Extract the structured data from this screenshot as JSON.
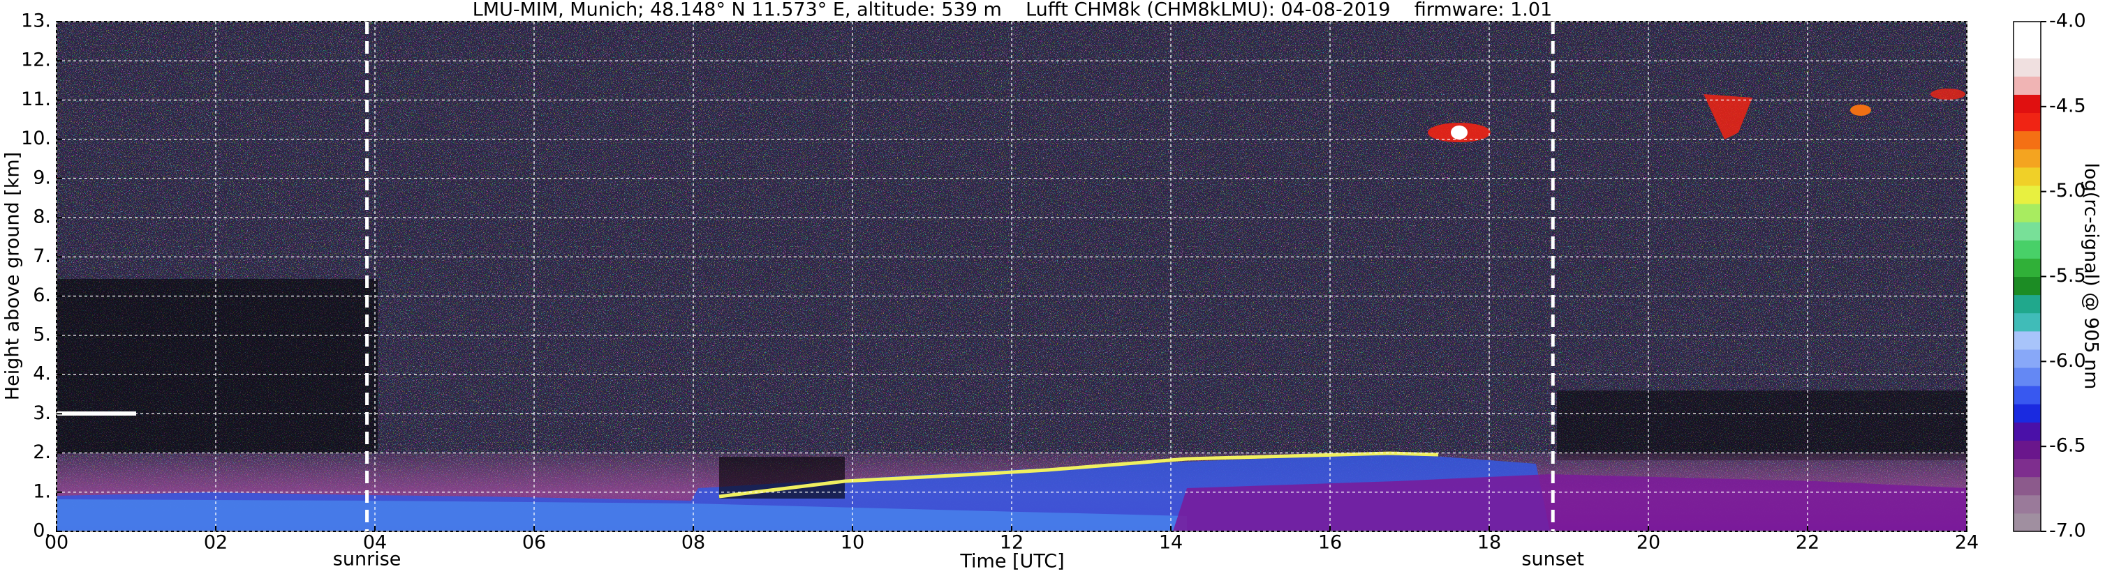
{
  "chart_data": {
    "type": "heatmap",
    "title": "LMU-MIM, Munich; 48.148° N 11.573° E, altitude: 539 m    Lufft CHM8k (CHM8kLMU): 04-08-2019    firmware: 1.01",
    "x_label": "Time [UTC]",
    "y_label": "Height above ground [km]",
    "colorbar_label": "log(rc-signal) @ 905 nm",
    "xlim": [
      0,
      24
    ],
    "xticks": [
      {
        "value": 0,
        "label": "00"
      },
      {
        "value": 2,
        "label": "02"
      },
      {
        "value": 4,
        "label": "04"
      },
      {
        "value": 6,
        "label": "06"
      },
      {
        "value": 8,
        "label": "08"
      },
      10,
      12,
      14,
      16,
      18,
      20,
      22,
      24
    ],
    "ylim": [
      0,
      13
    ],
    "yticks": [
      {
        "value": 0,
        "label": "0."
      },
      {
        "value": 1,
        "label": "1."
      },
      {
        "value": 2,
        "label": "2."
      },
      {
        "value": 3,
        "label": "3."
      },
      {
        "value": 4,
        "label": "4."
      },
      {
        "value": 5,
        "label": "5."
      },
      {
        "value": 6,
        "label": "6."
      },
      {
        "value": 7,
        "label": "7."
      },
      {
        "value": 8,
        "label": "8."
      },
      {
        "value": 9,
        "label": "9."
      },
      {
        "value": 10,
        "label": "10."
      },
      {
        "value": 11,
        "label": "11."
      },
      {
        "value": 12,
        "label": "12."
      },
      {
        "value": 13,
        "label": "13."
      }
    ],
    "grid": true,
    "clim": [
      -7,
      -4
    ],
    "cticks": [
      {
        "value": -4,
        "label": "-4.0"
      },
      -4.5,
      {
        "value": -5,
        "label": "-5.0"
      },
      -5.5,
      {
        "value": -6,
        "label": "-6.0"
      },
      -6.5,
      {
        "value": -7,
        "label": "-7.0"
      }
    ],
    "colormap": [
      "#a08fa0",
      "#9a7a9a",
      "#8c5a8c",
      "#7e2e8e",
      "#6a168c",
      "#4a10a8",
      "#1a2ae0",
      "#3858f0",
      "#6488f4",
      "#88a8f8",
      "#a8c4fa",
      "#40bcb8",
      "#20a88c",
      "#1c8c24",
      "#30b038",
      "#48d068",
      "#78e098",
      "#a8ec60",
      "#e8f040",
      "#f0d028",
      "#f4a420",
      "#f47014",
      "#f02414",
      "#e01010",
      "#f0b4b4",
      "#f0e0e0",
      "#ffffff",
      "#ffffff"
    ],
    "vlines": [
      {
        "x": 3.9,
        "label": "sunrise"
      },
      {
        "x": 18.8,
        "label": "sunset"
      }
    ]
  }
}
